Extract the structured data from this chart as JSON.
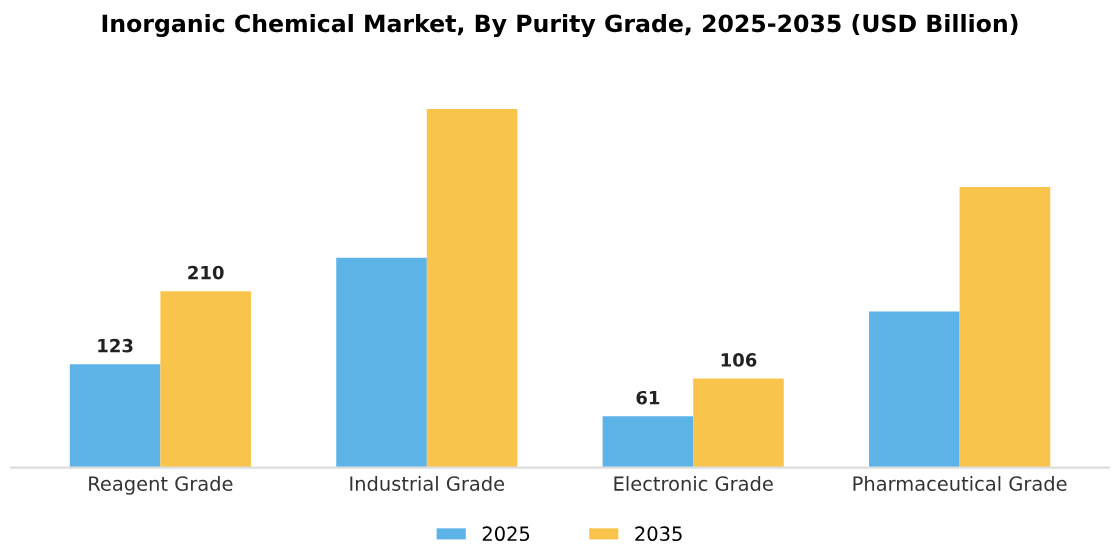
{
  "chart_data": {
    "type": "bar",
    "title": "Inorganic Chemical Market, By Purity Grade, 2025-2035 (USD Billion)",
    "categories": [
      "Reagent Grade",
      "Industrial Grade",
      "Electronic Grade",
      "Pharmaceutical Grade"
    ],
    "series": [
      {
        "name": "2025",
        "color": "#5db3e6",
        "values": [
          123,
          250,
          61,
          186
        ],
        "value_labels": [
          "123",
          null,
          "61",
          null
        ]
      },
      {
        "name": "2035",
        "color": "#f9c44b",
        "values": [
          210,
          427,
          106,
          334
        ],
        "value_labels": [
          "210",
          null,
          "106",
          null
        ]
      }
    ],
    "legend": "bottom",
    "grid": false
  }
}
